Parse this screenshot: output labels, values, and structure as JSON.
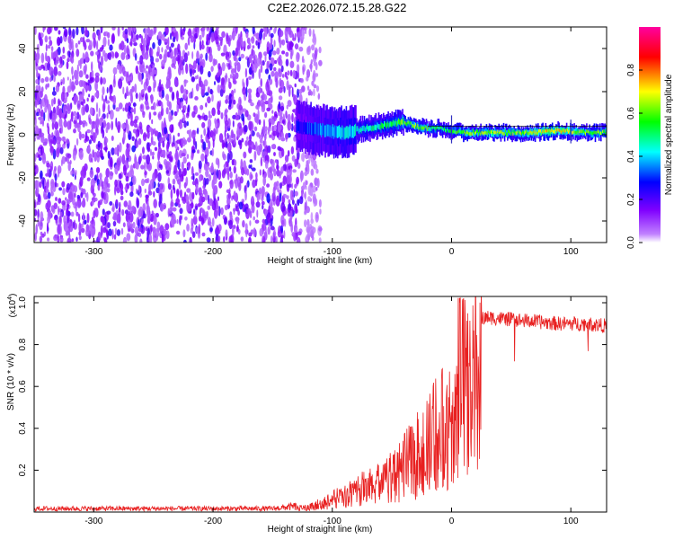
{
  "figure": {
    "title": "C2E2.2026.072.15.28.G22"
  },
  "chart_data": [
    {
      "type": "heatmap",
      "name": "spectrogram",
      "xlabel": "Height of straight line (km)",
      "ylabel": "Frequency (Hz)",
      "xlim": [
        -350,
        130
      ],
      "ylim": [
        -50,
        50
      ],
      "xticks": [
        "-300",
        "-200",
        "-100",
        "0",
        "100"
      ],
      "yticks": [
        "-40",
        "-20",
        "0",
        "20",
        "40"
      ],
      "colorbar": {
        "label": "Normalized spectral amplitude",
        "range": [
          0,
          1
        ],
        "ticks": [
          "0.0",
          "0.2",
          "0.4",
          "0.6",
          "0.8"
        ],
        "colors": [
          "#ffffff",
          "#8000ff",
          "#0000ff",
          "#00ffff",
          "#00ff00",
          "#ffff00",
          "#ff0000",
          "#ff00a0"
        ]
      },
      "noise_region": {
        "x_from": -350,
        "x_to": -125,
        "level": 0.12
      },
      "signal_track": {
        "x": [
          -130,
          -110,
          -90,
          -70,
          -50,
          -40,
          -30,
          -20,
          -10,
          0,
          10,
          30,
          50,
          70,
          90,
          110,
          130
        ],
        "freq": [
          4,
          2,
          1,
          3,
          5,
          6,
          4,
          3,
          3,
          2,
          1,
          1,
          1,
          1,
          2,
          1,
          1
        ],
        "amplitude": [
          0.25,
          0.35,
          0.4,
          0.45,
          0.5,
          0.6,
          0.6,
          0.55,
          0.5,
          0.5,
          0.6,
          0.65,
          0.6,
          0.7,
          0.75,
          0.6,
          0.6
        ]
      }
    },
    {
      "type": "line",
      "name": "snr",
      "xlabel": "Height of straight line (km)",
      "ylabel": "SNR (10 * v/v)",
      "scale_label": "(x10",
      "scale_exp": "4",
      "xlim": [
        -350,
        130
      ],
      "ylim": [
        0,
        1.03
      ],
      "xticks": [
        "-300",
        "-200",
        "-100",
        "0",
        "100"
      ],
      "yticks": [
        "0.2",
        "0.4",
        "0.6",
        "0.8",
        "1.0"
      ],
      "color": "#e82020",
      "envelope": {
        "x": [
          -350,
          -150,
          -120,
          -100,
          -80,
          -60,
          -40,
          -20,
          -10,
          0,
          10,
          20,
          25,
          30,
          50,
          70,
          90,
          110,
          130
        ],
        "y": [
          0.015,
          0.015,
          0.03,
          0.08,
          0.14,
          0.2,
          0.3,
          0.45,
          0.55,
          0.6,
          0.72,
          0.85,
          0.92,
          0.93,
          0.92,
          0.91,
          0.9,
          0.9,
          0.89
        ]
      }
    }
  ]
}
